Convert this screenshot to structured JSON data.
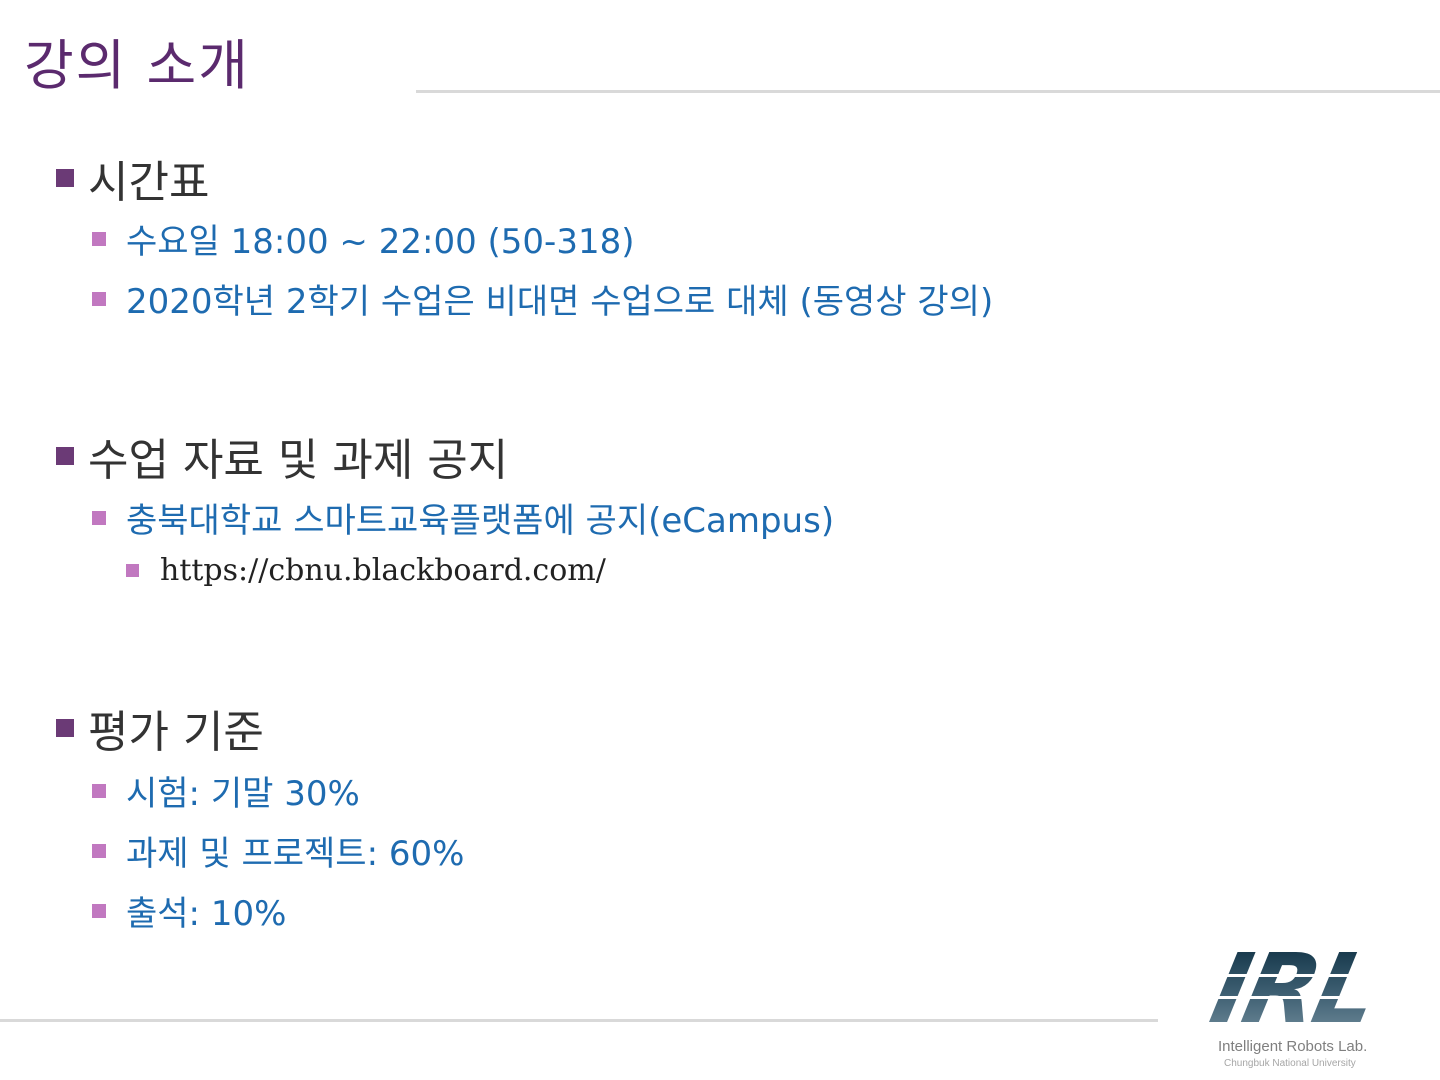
{
  "title": "강의 소개",
  "sections": [
    {
      "heading": "시간표",
      "items": [
        {
          "text": "수요일 18:00 ~ 22:00 (50-318)"
        },
        {
          "text": "2020학년 2학기 수업은 비대면 수업으로 대체 (동영상 강의)"
        }
      ]
    },
    {
      "heading": "수업 자료 및 과제 공지",
      "items": [
        {
          "text": "충북대학교 스마트교육플랫폼에 공지(eCampus)"
        }
      ],
      "link": "https://cbnu.blackboard.com/"
    },
    {
      "heading": "평가 기준",
      "items": [
        {
          "text": "시험: 기말 30%"
        },
        {
          "text": "과제 및 프로젝트: 60%"
        },
        {
          "text": "출석: 10%"
        }
      ]
    }
  ],
  "logo": {
    "mark": "IRL",
    "name": "Intelligent Robots Lab.",
    "university": "Chungbuk National University"
  },
  "colors": {
    "title": "#5b2a6e",
    "heading_bullet": "#6b3a76",
    "sub_bullet": "#c178c0",
    "sub_text": "#1e6bb0",
    "heading_text": "#333333"
  }
}
